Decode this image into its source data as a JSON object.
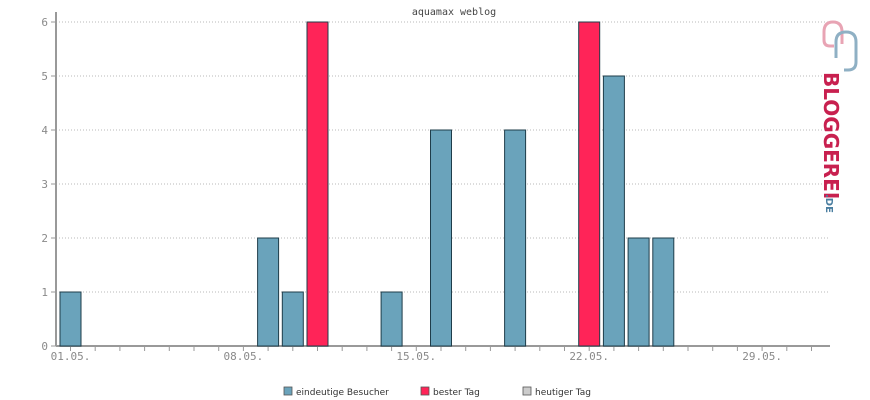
{
  "chart_data": {
    "type": "bar",
    "title": "aquamax weblog",
    "ylim": [
      0,
      6
    ],
    "yticks": [
      0,
      1,
      2,
      3,
      4,
      5,
      6
    ],
    "grid": true,
    "legend_position": "bottom-center",
    "day_count": 31,
    "x_tick_labels": [
      {
        "day": 1,
        "label": "01.05."
      },
      {
        "day": 8,
        "label": "08.05."
      },
      {
        "day": 15,
        "label": "15.05."
      },
      {
        "day": 22,
        "label": "22.05."
      },
      {
        "day": 29,
        "label": "29.05."
      }
    ],
    "bars": [
      {
        "day": 1,
        "value": 1,
        "series": "eindeutige Besucher"
      },
      {
        "day": 9,
        "value": 2,
        "series": "eindeutige Besucher"
      },
      {
        "day": 10,
        "value": 1,
        "series": "eindeutige Besucher"
      },
      {
        "day": 11,
        "value": 6,
        "series": "bester Tag"
      },
      {
        "day": 14,
        "value": 1,
        "series": "eindeutige Besucher"
      },
      {
        "day": 16,
        "value": 4,
        "series": "eindeutige Besucher"
      },
      {
        "day": 19,
        "value": 4,
        "series": "eindeutige Besucher"
      },
      {
        "day": 22,
        "value": 6,
        "series": "bester Tag"
      },
      {
        "day": 23,
        "value": 5,
        "series": "eindeutige Besucher"
      },
      {
        "day": 24,
        "value": 2,
        "series": "eindeutige Besucher"
      },
      {
        "day": 25,
        "value": 2,
        "series": "eindeutige Besucher"
      }
    ],
    "legend": [
      {
        "name": "eindeutige Besucher",
        "color": "#6aa3bb"
      },
      {
        "name": "bester Tag",
        "color": "#ff2458"
      },
      {
        "name": "heutiger Tag",
        "color": "#cccccc"
      }
    ]
  },
  "logo": {
    "text": "BLOGGEREI",
    "suffix": ".DE",
    "color_main": "#c8204f",
    "color_suffix": "#4a7ea0"
  }
}
